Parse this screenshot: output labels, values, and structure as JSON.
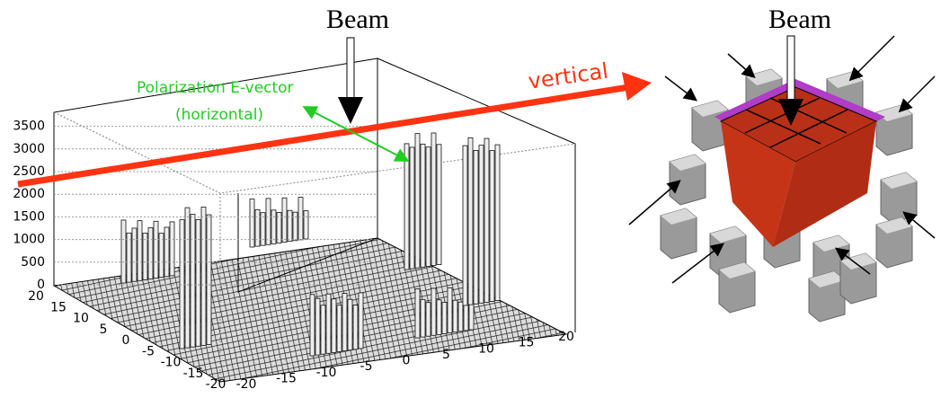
{
  "lego_plot": {
    "z_ticks": [
      "0",
      "500",
      "1000",
      "1500",
      "2000",
      "2500",
      "3000",
      "3500"
    ],
    "y_ticks": [
      "20",
      "15",
      "10",
      "5",
      "0",
      "-5",
      "-10",
      "-15",
      "-20"
    ],
    "x_ticks": [
      "-20",
      "-15",
      "-10",
      "-5",
      "0",
      "5",
      "10",
      "15",
      "20"
    ],
    "beam_label": "Beam",
    "polarization_label": "Polarization E-vector",
    "polarization_sub": "(horizontal)",
    "vertical_label": "vertical"
  },
  "detector": {
    "beam_label": "Beam"
  }
}
